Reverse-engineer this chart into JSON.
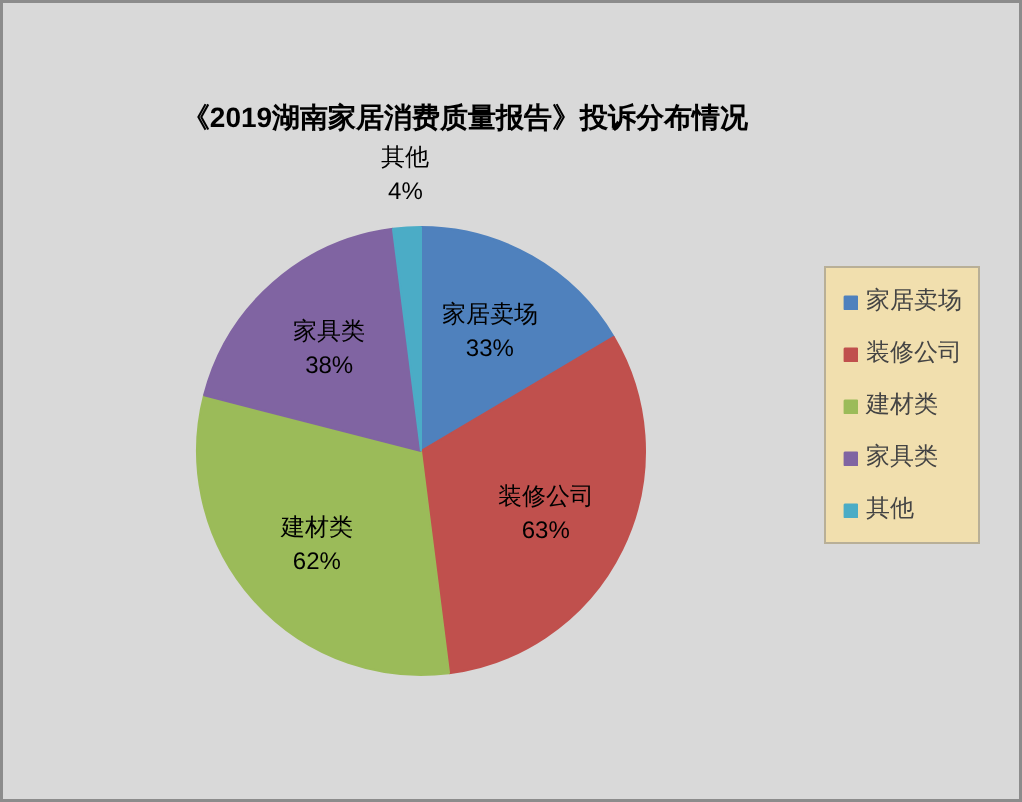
{
  "chart_data": {
    "type": "pie",
    "title": "《2019湖南家居消费质量报告》投诉分布情况",
    "categories": [
      "家居卖场",
      "装修公司",
      "建材类",
      "家具类",
      "其他"
    ],
    "values": [
      33,
      63,
      62,
      38,
      4
    ],
    "colors": [
      "#4f81bd",
      "#c0504d",
      "#9bbb59",
      "#8064a2",
      "#4bacc6"
    ],
    "value_labels": [
      "33%",
      "63%",
      "62%",
      "38%",
      "4%"
    ],
    "legend": "right"
  }
}
